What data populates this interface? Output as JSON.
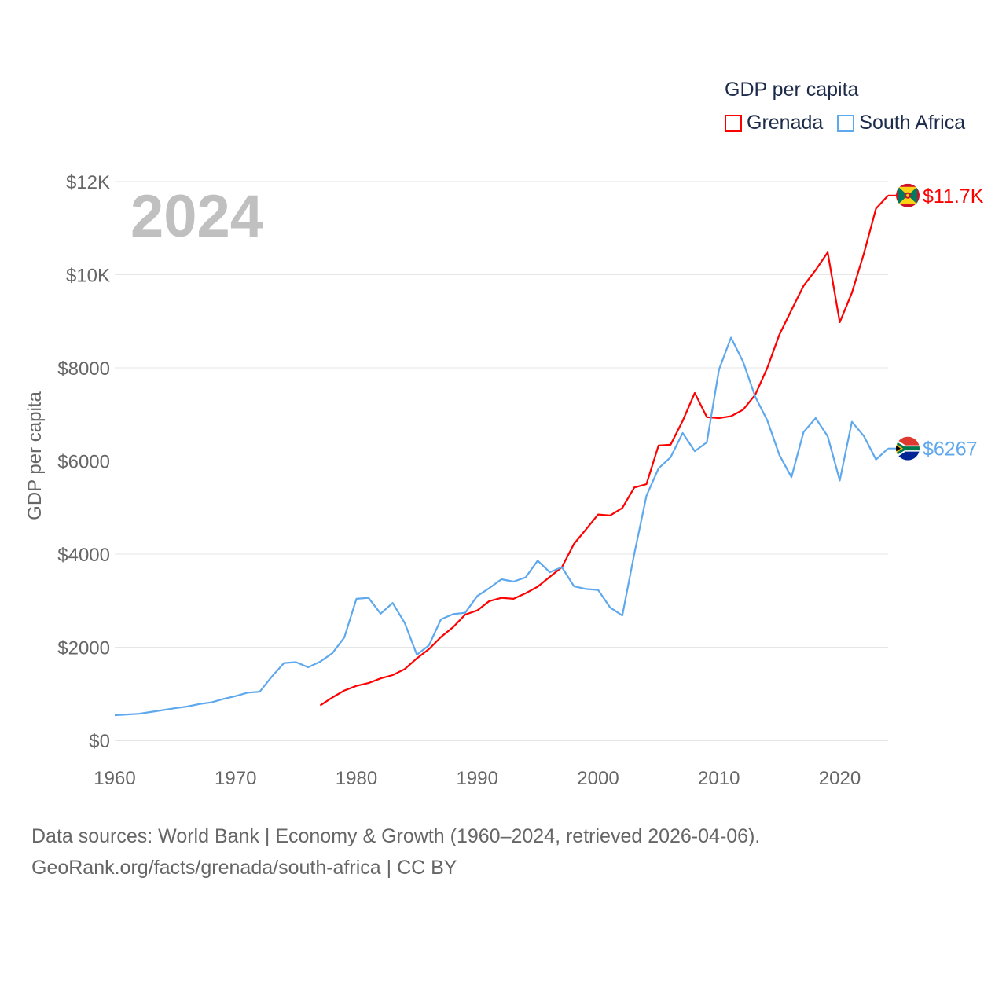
{
  "chart_data": {
    "type": "line",
    "title": "GDP per capita",
    "year_label": "2024",
    "xlabel": "",
    "ylabel": "GDP per capita",
    "xlim": [
      1960,
      2024
    ],
    "ylim": [
      0,
      12000
    ],
    "x_ticks": [
      1960,
      1970,
      1980,
      1990,
      2000,
      2010,
      2020
    ],
    "y_ticks": [
      {
        "v": 0,
        "label": "$0"
      },
      {
        "v": 2000,
        "label": "$2000"
      },
      {
        "v": 4000,
        "label": "$4000"
      },
      {
        "v": 6000,
        "label": "$6000"
      },
      {
        "v": 8000,
        "label": "$8000"
      },
      {
        "v": 10000,
        "label": "$10K"
      },
      {
        "v": 12000,
        "label": "$12K"
      }
    ],
    "grid": true,
    "legend_placement": "top-right",
    "series": [
      {
        "name": "Grenada",
        "color": "#ff0000",
        "end_label": "$11.7K",
        "start_year": 1977,
        "values": [
          750,
          920,
          1070,
          1170,
          1230,
          1330,
          1400,
          1530,
          1760,
          1960,
          2220,
          2430,
          2700,
          2790,
          2990,
          3060,
          3040,
          3160,
          3300,
          3510,
          3720,
          4220,
          4530,
          4850,
          4830,
          4990,
          5430,
          5500,
          6330,
          6350,
          6860,
          7460,
          6940,
          6920,
          6960,
          7100,
          7420,
          8000,
          8710,
          9240,
          9760,
          10100,
          10480,
          8980,
          9610,
          10460,
          11420,
          11700
        ]
      },
      {
        "name": "South Africa",
        "color": "#5ea8ee",
        "end_label": "$6267",
        "start_year": 1960,
        "values": [
          540,
          555,
          570,
          610,
          650,
          690,
          725,
          780,
          815,
          890,
          950,
          1025,
          1045,
          1370,
          1660,
          1680,
          1570,
          1690,
          1870,
          2210,
          3040,
          3060,
          2720,
          2950,
          2520,
          1840,
          2040,
          2600,
          2710,
          2740,
          3100,
          3270,
          3460,
          3410,
          3500,
          3860,
          3610,
          3720,
          3310,
          3250,
          3230,
          2850,
          2680,
          4010,
          5250,
          5840,
          6080,
          6600,
          6210,
          6400,
          7960,
          8650,
          8130,
          7380,
          6870,
          6130,
          5650,
          6620,
          6920,
          6530,
          5580,
          6840,
          6530,
          6030,
          6267
        ]
      }
    ]
  },
  "footer": {
    "line1": "Data sources: World Bank | Economy & Growth (1960–2024, retrieved 2026-04-06).",
    "line2": "GeoRank.org/facts/grenada/south-africa | CC BY"
  }
}
